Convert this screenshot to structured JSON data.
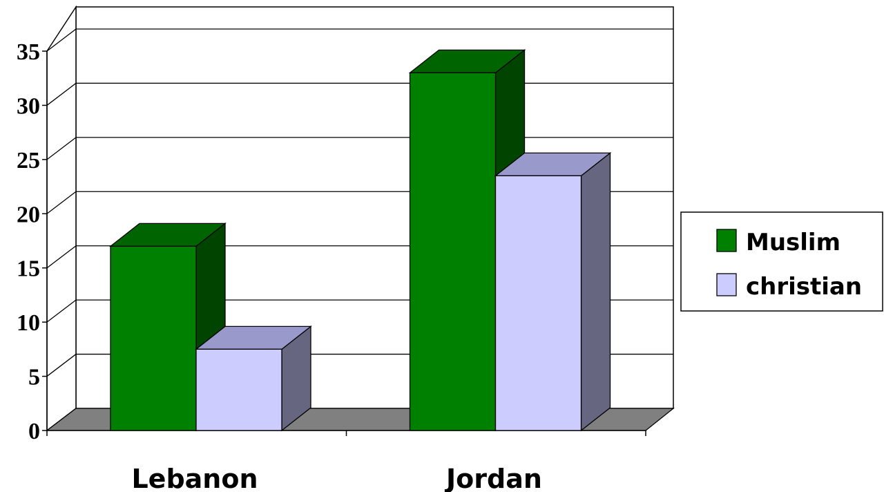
{
  "chart_data": {
    "type": "bar",
    "style": "3d-clustered-column",
    "categories": [
      "Lebanon",
      "Jordan"
    ],
    "series": [
      {
        "name": "Muslim",
        "values": [
          17,
          33
        ],
        "color": "#008000",
        "top_color": "#006400",
        "side_color": "#004400"
      },
      {
        "name": "christian",
        "values": [
          7.5,
          23.5
        ],
        "color": "#ccccff",
        "top_color": "#9999cc",
        "side_color": "#666680"
      }
    ],
    "title": "",
    "xlabel": "",
    "ylabel": "",
    "ylim": [
      0,
      35
    ],
    "yticks": [
      "0",
      "5",
      "10",
      "15",
      "20",
      "25",
      "30",
      "35"
    ],
    "grid": true,
    "legend": "right",
    "floor_color": "#808080"
  }
}
